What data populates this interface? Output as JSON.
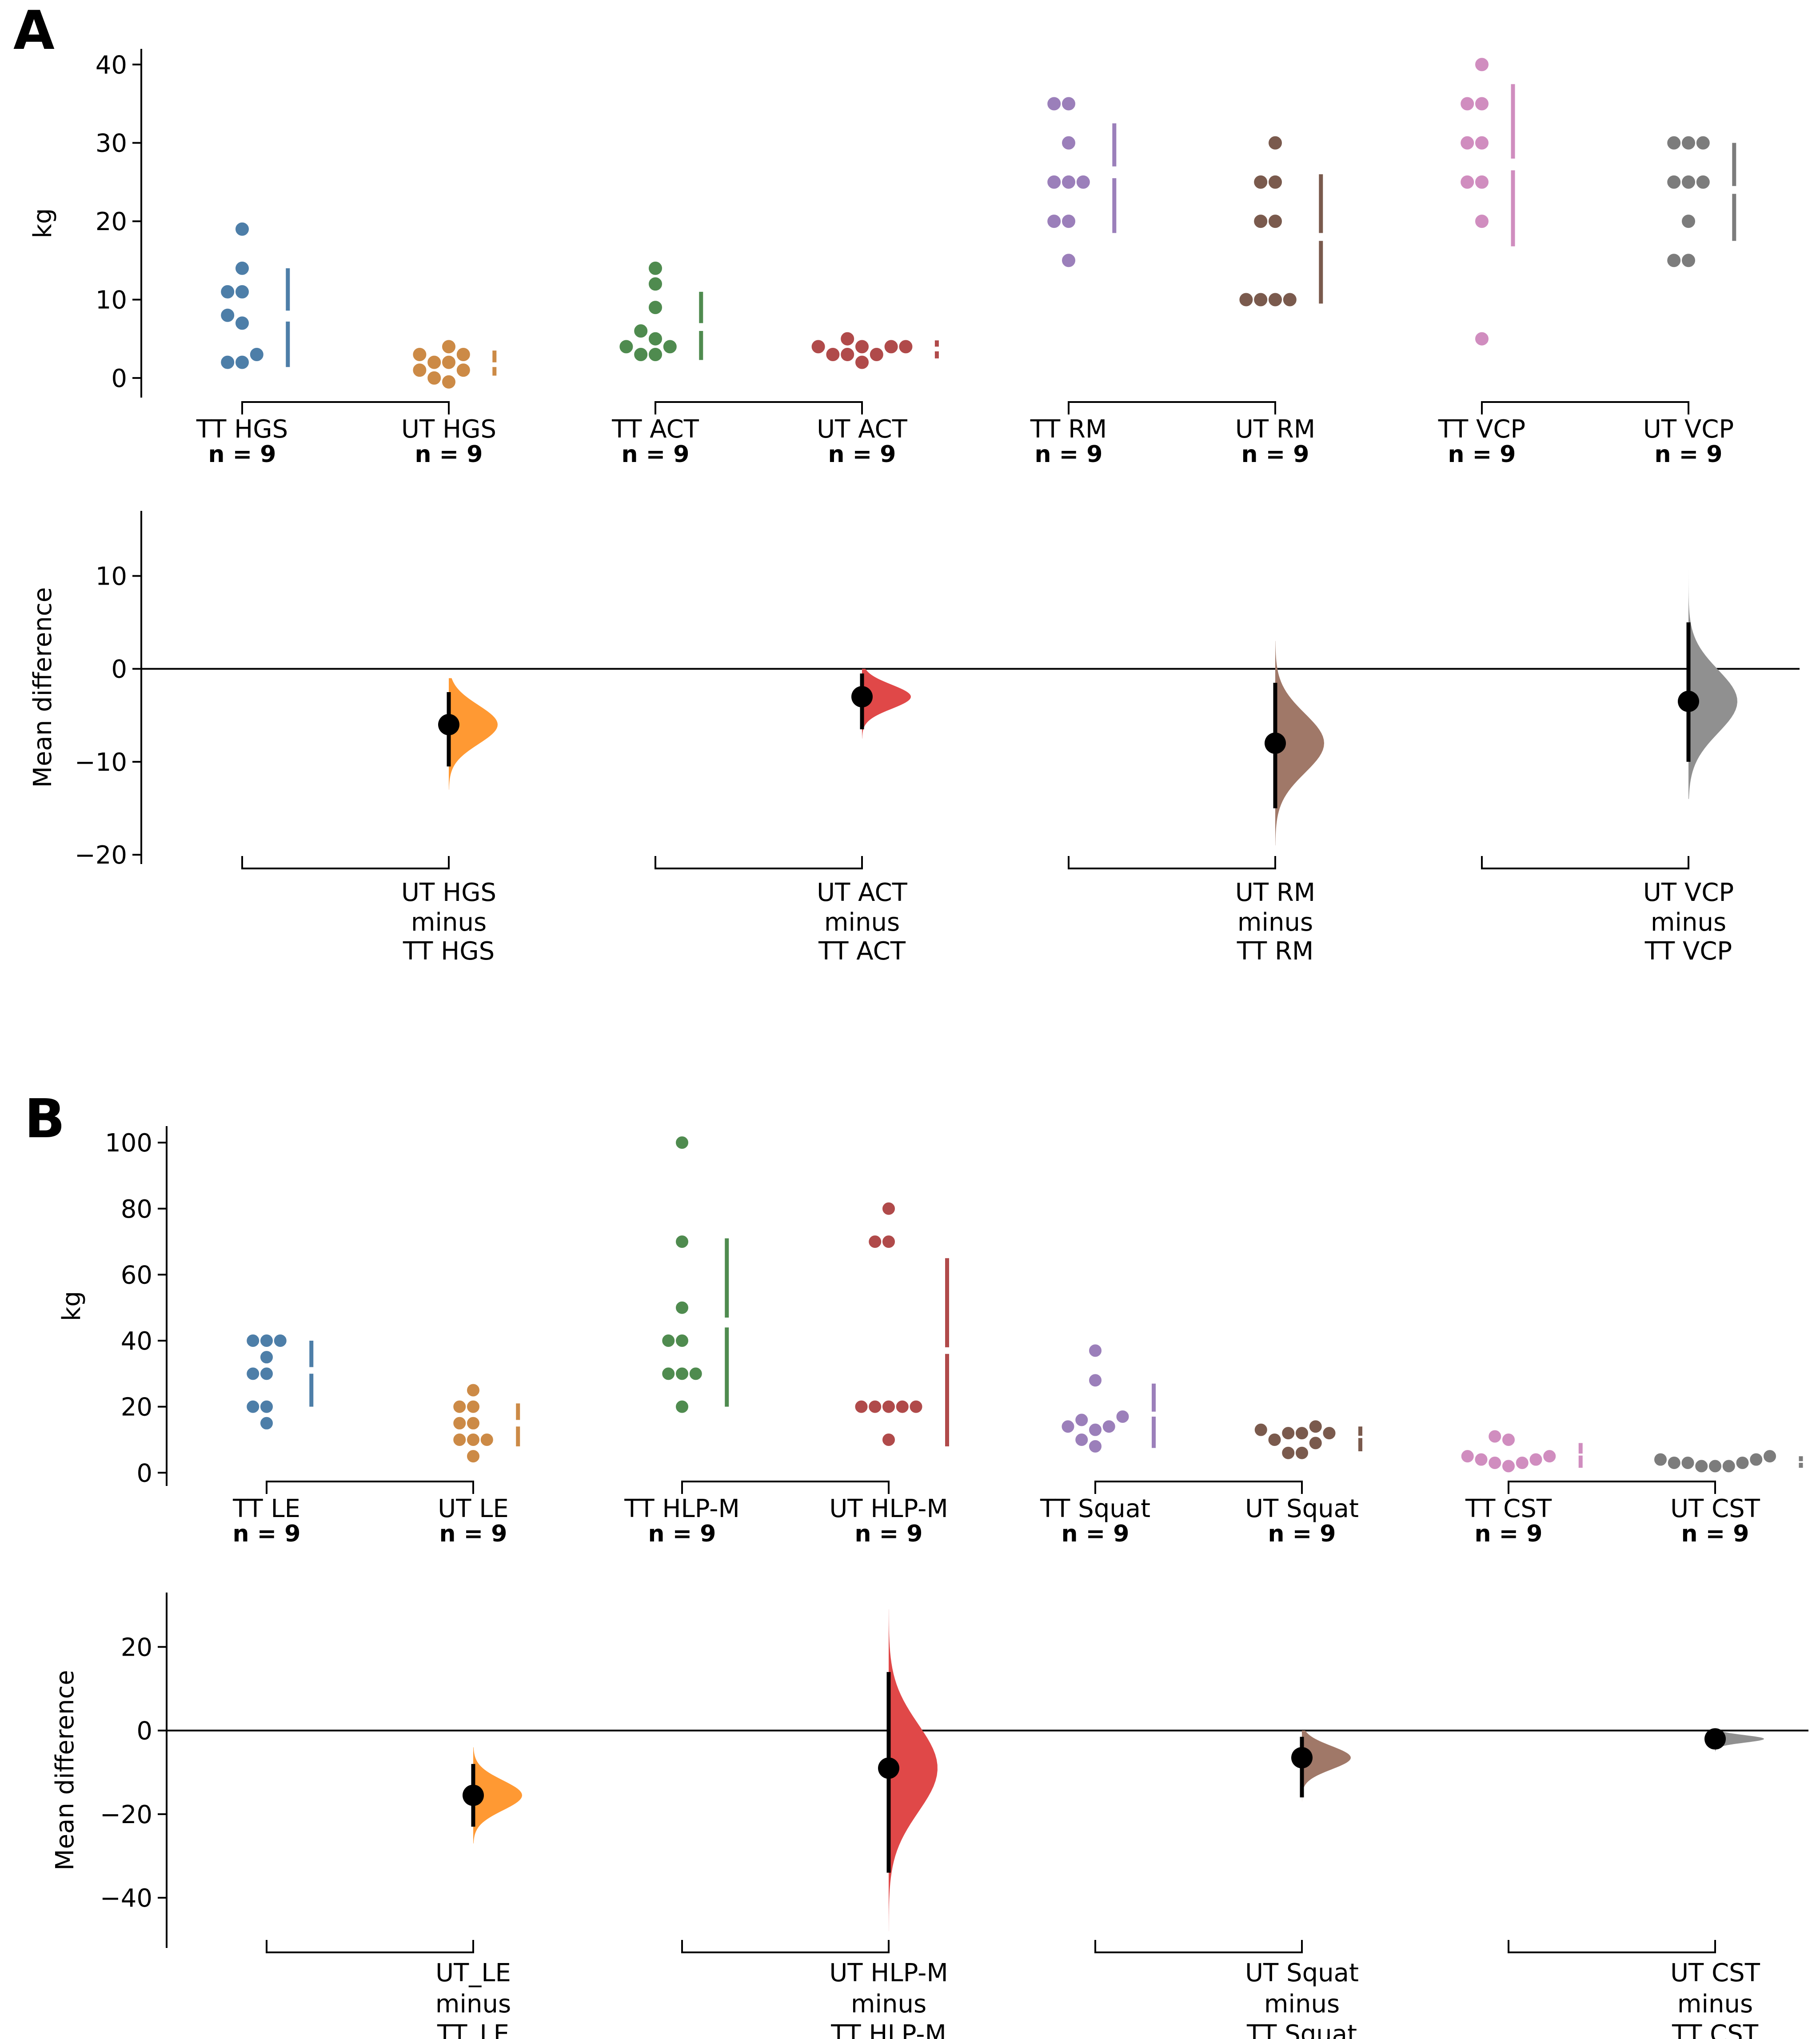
{
  "chart_data": [
    {
      "panel": "A",
      "type": "scatter",
      "title": "",
      "ylabel": "kg",
      "ylim": [
        -2.5,
        42
      ],
      "yticks": [
        0,
        10,
        20,
        30,
        40
      ],
      "groups": [
        {
          "name": "TT  HGS",
          "n_label": "n = 9",
          "color": "#4d7ea8",
          "values": [
            2,
            2,
            3,
            7,
            8,
            11,
            11,
            14,
            19
          ],
          "bar": {
            "lo": 1.4,
            "gap_lo": 7.2,
            "gap_hi": 8.6,
            "hi": 14
          }
        },
        {
          "name": "UT  HGS",
          "n_label": "n = 9",
          "color": "#cc8a46",
          "values": [
            -0.5,
            0,
            1,
            1,
            2,
            2,
            3,
            3,
            4
          ],
          "bar": {
            "lo": 0.3,
            "gap_lo": 1.4,
            "gap_hi": 2.0,
            "hi": 3.5
          }
        },
        {
          "name": "TT  ACT",
          "n_label": "n = 9",
          "color": "#4f8b4f",
          "values": [
            3,
            3,
            4,
            4,
            5,
            6,
            9,
            12,
            14
          ],
          "bar": {
            "lo": 2.3,
            "gap_lo": 6.0,
            "gap_hi": 7.0,
            "hi": 11
          }
        },
        {
          "name": "UT  ACT",
          "n_label": "n = 9",
          "color": "#b04a4a",
          "values": [
            2,
            3,
            3,
            3,
            4,
            4,
            4,
            4,
            5
          ],
          "bar": {
            "lo": 2.5,
            "gap_lo": 3.4,
            "gap_hi": 4.0,
            "hi": 4.8
          }
        },
        {
          "name": "TT  RM",
          "n_label": "n = 9",
          "color": "#9b7fba",
          "values": [
            15,
            20,
            20,
            25,
            25,
            25,
            30,
            35,
            35
          ],
          "bar": {
            "lo": 18.5,
            "gap_lo": 25.5,
            "gap_hi": 27,
            "hi": 32.5
          }
        },
        {
          "name": "UT  RM",
          "n_label": "n = 9",
          "color": "#7a5a4d",
          "values": [
            10,
            10,
            10,
            10,
            20,
            20,
            25,
            25,
            30
          ],
          "bar": {
            "lo": 9.5,
            "gap_lo": 17.5,
            "gap_hi": 18.5,
            "hi": 26
          }
        },
        {
          "name": "TT  VCP",
          "n_label": "n = 9",
          "color": "#d08dbf",
          "values": [
            5,
            20,
            25,
            25,
            30,
            30,
            35,
            35,
            40
          ],
          "bar": {
            "lo": 16.8,
            "gap_lo": 26.5,
            "gap_hi": 28,
            "hi": 37.5
          }
        },
        {
          "name": "UT  VCP",
          "n_label": "n = 9",
          "color": "#7c7c7c",
          "values": [
            15,
            15,
            20,
            25,
            25,
            25,
            30,
            30,
            30
          ],
          "bar": {
            "lo": 17.5,
            "gap_lo": 23.5,
            "gap_hi": 24.5,
            "hi": 30
          }
        }
      ],
      "diff": {
        "ylabel": "Mean difference",
        "ylim": [
          -21,
          17
        ],
        "yticks": [
          -20,
          -10,
          0,
          10
        ],
        "tick_labels": [
          "−20",
          "−10",
          "0",
          "10"
        ],
        "comparisons": [
          {
            "label": [
              "UT  HGS",
              "minus",
              "TT  HGS"
            ],
            "color": "#ff9933",
            "mean": -6,
            "ci": [
              -10.5,
              -2.5
            ],
            "dist_sd": 2.1,
            "dist_range": [
              -13,
              -1
            ]
          },
          {
            "label": [
              "UT  ACT",
              "minus",
              "TT  ACT"
            ],
            "color": "#e04848",
            "mean": -3,
            "ci": [
              -6.5,
              -0.5
            ],
            "dist_sd": 1.3,
            "dist_range": [
              -7.5,
              0
            ]
          },
          {
            "label": [
              "UT  RM",
              "minus",
              "TT  RM"
            ],
            "color": "#a07868",
            "mean": -8,
            "ci": [
              -15,
              -1.5
            ],
            "dist_sd": 3.2,
            "dist_range": [
              -19,
              3
            ]
          },
          {
            "label": [
              "UT  VCP",
              "minus",
              "TT  VCP"
            ],
            "color": "#909090",
            "mean": -3.5,
            "ci": [
              -10,
              5
            ],
            "dist_sd": 3.4,
            "dist_range": [
              -14,
              11
            ]
          }
        ]
      }
    },
    {
      "panel": "B",
      "type": "scatter",
      "title": "",
      "ylabel": "kg",
      "ylim": [
        -4,
        105
      ],
      "yticks": [
        0,
        20,
        40,
        60,
        80,
        100
      ],
      "groups": [
        {
          "name": "TT  LE",
          "n_label": "n = 9",
          "color": "#4d7ea8",
          "values": [
            15,
            20,
            20,
            30,
            30,
            35,
            40,
            40,
            40
          ],
          "bar": {
            "lo": 20,
            "gap_lo": 30,
            "gap_hi": 32,
            "hi": 40
          }
        },
        {
          "name": "UT  LE",
          "n_label": "n = 9",
          "color": "#cc8a46",
          "values": [
            5,
            10,
            10,
            10,
            15,
            15,
            20,
            20,
            25
          ],
          "bar": {
            "lo": 8,
            "gap_lo": 14,
            "gap_hi": 16,
            "hi": 21
          }
        },
        {
          "name": "TT  HLP-M",
          "n_label": "n = 9",
          "color": "#4f8b4f",
          "values": [
            20,
            30,
            30,
            30,
            40,
            40,
            50,
            70,
            100
          ],
          "bar": {
            "lo": 20,
            "gap_lo": 44,
            "gap_hi": 47,
            "hi": 71
          }
        },
        {
          "name": "UT  HLP-M",
          "n_label": "n = 9",
          "color": "#b04a4a",
          "values": [
            10,
            20,
            20,
            20,
            20,
            20,
            70,
            70,
            80
          ],
          "bar": {
            "lo": 8,
            "gap_lo": 36,
            "gap_hi": 38,
            "hi": 65
          }
        },
        {
          "name": "TT  Squat",
          "n_label": "n = 9",
          "color": "#9b7fba",
          "values": [
            8,
            10,
            13,
            14,
            14,
            16,
            17,
            28,
            37
          ],
          "bar": {
            "lo": 7.5,
            "gap_lo": 17,
            "gap_hi": 18.5,
            "hi": 27
          }
        },
        {
          "name": "UT  Squat",
          "n_label": "n = 9",
          "color": "#7a5a4d",
          "values": [
            6,
            6,
            9,
            10,
            12,
            12,
            12,
            13,
            14
          ],
          "bar": {
            "lo": 6.5,
            "gap_lo": 10.5,
            "gap_hi": 11.2,
            "hi": 14
          }
        },
        {
          "name": "TT  CST",
          "n_label": "n = 9",
          "color": "#d08dbf",
          "values": [
            2,
            3,
            3,
            4,
            4,
            5,
            5,
            10,
            11
          ],
          "bar": {
            "lo": 1.5,
            "gap_lo": 5.2,
            "gap_hi": 5.8,
            "hi": 9
          }
        },
        {
          "name": "UT  CST",
          "n_label": "n = 9",
          "color": "#7c7c7c",
          "values": [
            2,
            2,
            2,
            3,
            3,
            3,
            4,
            4,
            5
          ],
          "bar": {
            "lo": 1.5,
            "gap_lo": 3.0,
            "gap_hi": 3.5,
            "hi": 5
          }
        }
      ],
      "diff": {
        "ylabel": "Mean difference",
        "ylim": [
          -52,
          33
        ],
        "yticks": [
          -40,
          -20,
          0,
          20
        ],
        "tick_labels": [
          "−40",
          "−20",
          "0",
          "20"
        ],
        "comparisons": [
          {
            "label": [
              "UT_LE",
              "minus",
              "TT_LE"
            ],
            "color": "#ff9933",
            "mean": -15.5,
            "ci": [
              -23,
              -8
            ],
            "dist_sd": 3.6,
            "dist_range": [
              -27,
              -4
            ]
          },
          {
            "label": [
              "UT  HLP-M",
              "minus",
              "TT  HLP-M"
            ],
            "color": "#e04848",
            "mean": -9,
            "ci": [
              -34,
              14
            ],
            "dist_sd": 10.5,
            "dist_range": [
              -48,
              29
            ]
          },
          {
            "label": [
              "UT  Squat",
              "minus",
              "TT  Squat"
            ],
            "color": "#a07868",
            "mean": -6.5,
            "ci": [
              -16,
              -1.5
            ],
            "dist_sd": 2.8,
            "dist_range": [
              -17,
              0
            ]
          },
          {
            "label": [
              "UT  CST",
              "minus",
              "TT  CST"
            ],
            "color": "#909090",
            "mean": -2,
            "ci": [
              -4.5,
              -0.5
            ],
            "dist_sd": 0.9,
            "dist_range": [
              -5,
              0
            ]
          }
        ]
      }
    }
  ]
}
